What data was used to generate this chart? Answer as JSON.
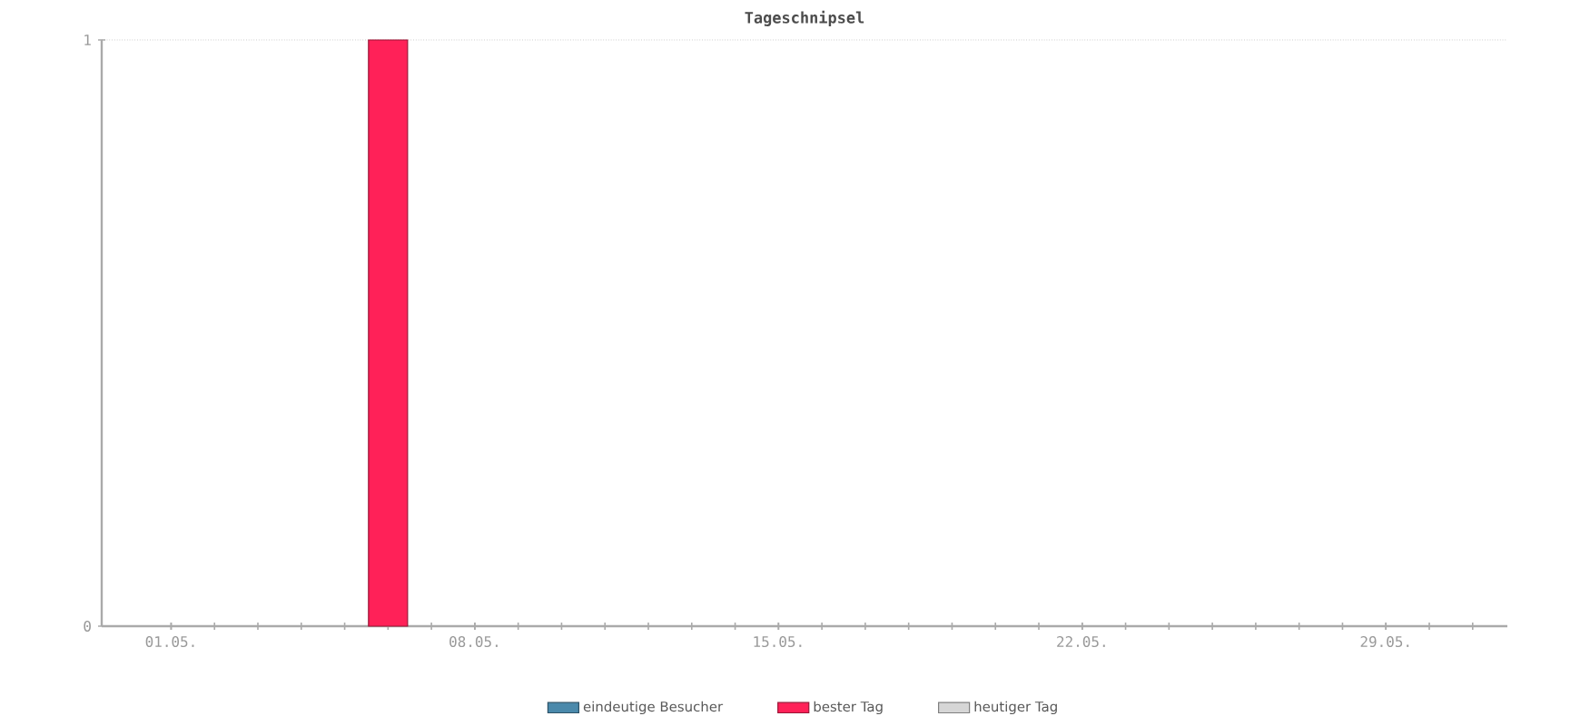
{
  "chart_data": {
    "type": "bar",
    "title": "Tageschnipsel",
    "categories": [
      "01.05.",
      null,
      null,
      null,
      null,
      null,
      null,
      "08.05.",
      null,
      null,
      null,
      null,
      null,
      null,
      "15.05.",
      null,
      null,
      null,
      null,
      null,
      null,
      "22.05.",
      null,
      null,
      null,
      null,
      null,
      null,
      "29.05.",
      null,
      null
    ],
    "series": [
      {
        "name": "eindeutige Besucher",
        "color": "#4a89ab",
        "values": [
          null,
          null,
          null,
          null,
          null,
          null,
          null,
          null,
          null,
          null,
          null,
          null,
          null,
          null,
          null,
          null,
          null,
          null,
          null,
          null,
          null,
          null,
          null,
          null,
          null,
          null,
          null,
          null,
          null,
          null,
          null
        ]
      },
      {
        "name": "bester Tag",
        "color": "#ff2158",
        "values": [
          null,
          null,
          null,
          null,
          null,
          1,
          null,
          null,
          null,
          null,
          null,
          null,
          null,
          null,
          null,
          null,
          null,
          null,
          null,
          null,
          null,
          null,
          null,
          null,
          null,
          null,
          null,
          null,
          null,
          null,
          null
        ]
      },
      {
        "name": "heutiger Tag",
        "color": "#d6d6d6",
        "values": [
          null,
          null,
          null,
          null,
          null,
          null,
          null,
          null,
          null,
          null,
          null,
          null,
          null,
          null,
          null,
          null,
          null,
          null,
          null,
          null,
          null,
          null,
          null,
          null,
          null,
          null,
          null,
          null,
          null,
          null,
          null
        ]
      }
    ],
    "ylim": [
      0,
      1
    ],
    "yticks": [
      0,
      1
    ],
    "grid": "y",
    "legend": "bottom"
  }
}
